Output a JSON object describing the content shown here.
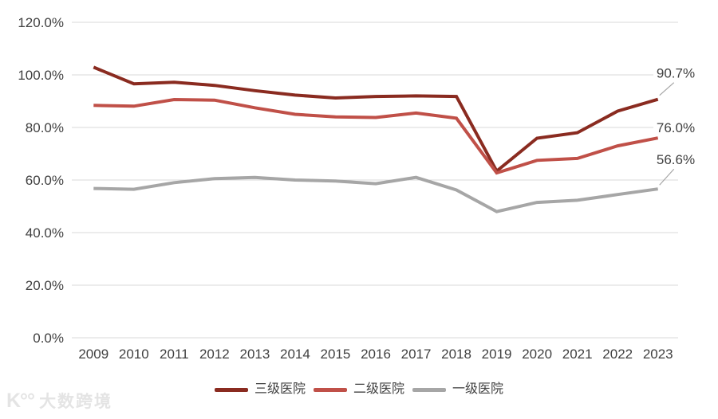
{
  "chart_data": {
    "type": "line",
    "title": "",
    "x": [
      "2009",
      "2010",
      "2011",
      "2012",
      "2013",
      "2014",
      "2015",
      "2016",
      "2017",
      "2018",
      "2019",
      "2020",
      "2021",
      "2022",
      "2023"
    ],
    "series": [
      {
        "name": "三级医院",
        "color": "#8a2b20",
        "values": [
          102.9,
          96.6,
          97.2,
          96.0,
          94.0,
          92.3,
          91.2,
          91.8,
          92.0,
          91.8,
          63.4,
          75.9,
          78.0,
          86.2,
          90.7
        ],
        "end_label": "90.7%"
      },
      {
        "name": "二级医院",
        "color": "#c05048",
        "values": [
          88.4,
          88.1,
          90.6,
          90.4,
          87.5,
          85.0,
          84.0,
          83.8,
          85.5,
          83.5,
          62.7,
          67.5,
          68.2,
          73.0,
          76.0
        ],
        "end_label": "76.0%"
      },
      {
        "name": "一级医院",
        "color": "#a6a6a6",
        "values": [
          56.8,
          56.5,
          59.0,
          60.5,
          61.0,
          60.0,
          59.6,
          58.6,
          61.0,
          56.2,
          48.0,
          51.5,
          52.3,
          54.5,
          56.6
        ],
        "end_label": "56.6%"
      }
    ],
    "y_ticks": [
      "0.0%",
      "20.0%",
      "40.0%",
      "60.0%",
      "80.0%",
      "100.0%",
      "120.0%"
    ],
    "ylim": [
      0,
      120
    ],
    "grid": "horizontal",
    "legend_position": "bottom",
    "colors": {
      "grid": "#d9d9d9",
      "axis_text": "#404040",
      "data_label_text": "#404040",
      "leader_line": "#a6a6a6"
    }
  },
  "watermark": {
    "logo": "K°°",
    "text": "大数跨境"
  }
}
